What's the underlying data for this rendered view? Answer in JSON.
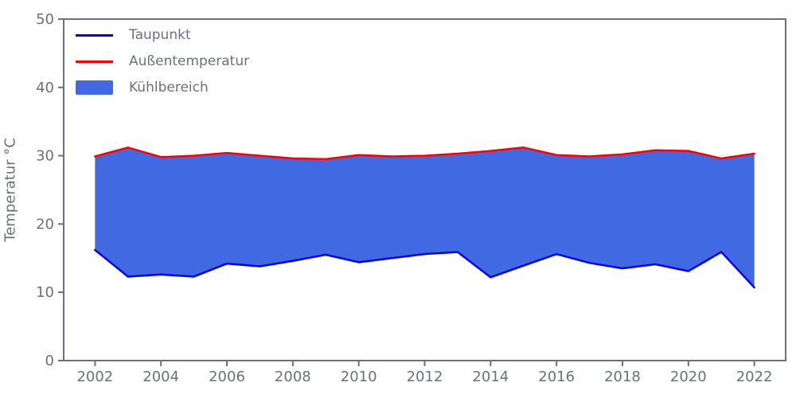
{
  "chart_data": {
    "type": "area",
    "title": "",
    "xlabel": "",
    "ylabel": "Temperatur °C",
    "x": [
      2002,
      2003,
      2004,
      2005,
      2006,
      2007,
      2008,
      2009,
      2010,
      2011,
      2012,
      2013,
      2014,
      2015,
      2016,
      2017,
      2018,
      2019,
      2020,
      2021,
      2022
    ],
    "series": [
      {
        "name": "Taupunkt",
        "color": "#0000ff",
        "role": "lower-line",
        "values": [
          16.2,
          12.3,
          12.6,
          12.3,
          14.2,
          13.8,
          14.6,
          15.5,
          14.4,
          15.0,
          15.6,
          15.9,
          12.2,
          13.9,
          15.6,
          14.3,
          13.5,
          14.1,
          13.1,
          15.9,
          10.7
        ]
      },
      {
        "name": "Außentemperatur",
        "color": "#ff0000",
        "role": "upper-line",
        "values": [
          29.9,
          31.2,
          29.8,
          30.0,
          30.4,
          30.0,
          29.6,
          29.5,
          30.1,
          29.9,
          30.0,
          30.3,
          30.7,
          31.2,
          30.1,
          29.9,
          30.2,
          30.8,
          30.7,
          29.6,
          30.3
        ]
      }
    ],
    "fill_between": {
      "name": "Kühlbereich",
      "color": "#4169e1",
      "between": [
        "Taupunkt",
        "Außentemperatur"
      ]
    },
    "legend": {
      "position": "upper-left",
      "entries": [
        "Taupunkt",
        "Außentemperatur",
        "Kühlbereich"
      ]
    },
    "xticks": [
      2002,
      2004,
      2006,
      2008,
      2010,
      2012,
      2014,
      2016,
      2018,
      2020,
      2022
    ],
    "yticks": [
      0,
      10,
      20,
      30,
      40,
      50
    ],
    "xlim": [
      2001.05,
      2022.95
    ],
    "ylim": [
      0,
      50
    ],
    "grid": false,
    "axis_color": "#6a7080",
    "line_width": 2.5
  }
}
